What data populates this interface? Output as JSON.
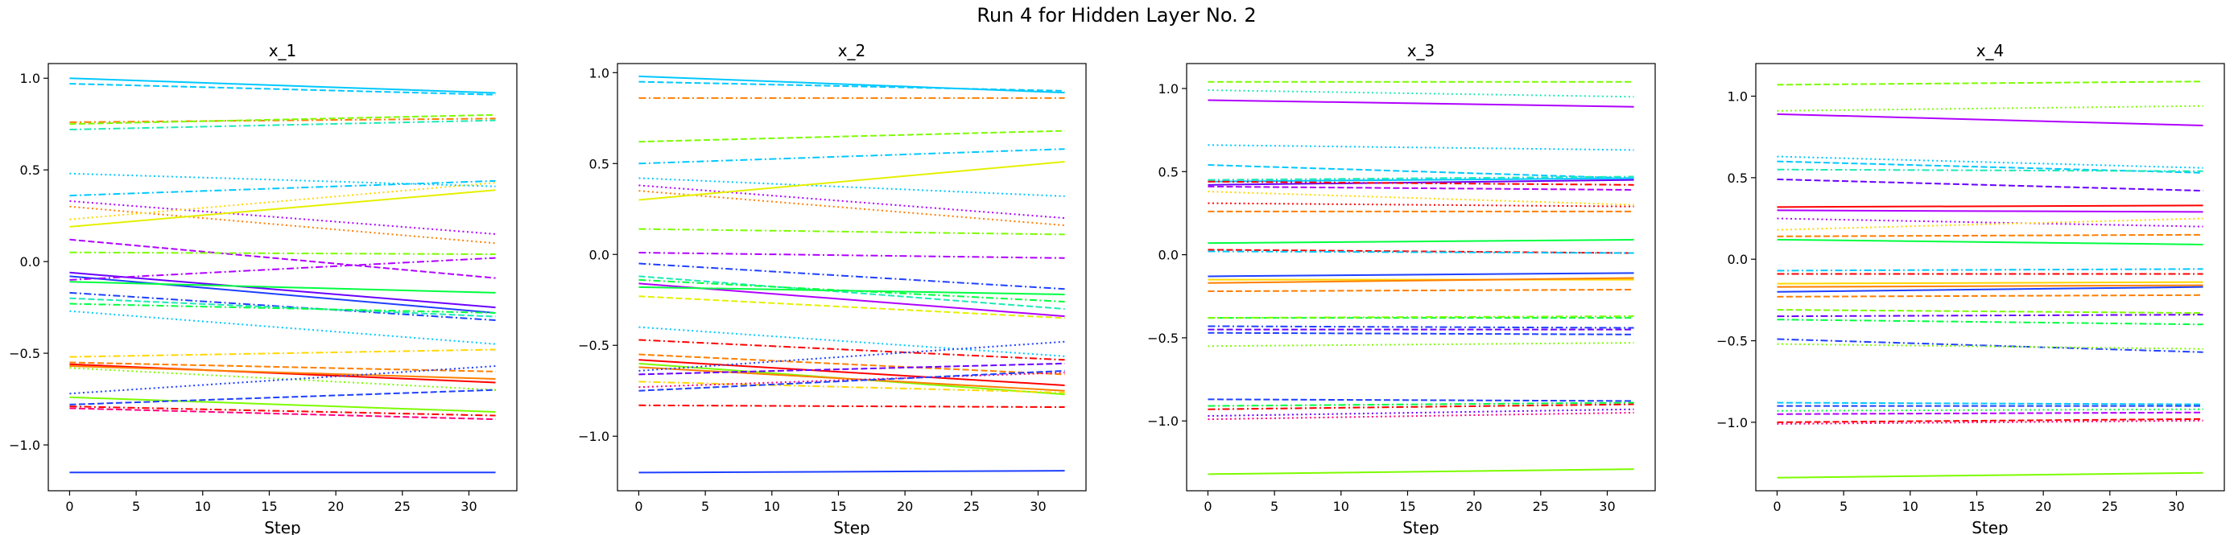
{
  "figure": {
    "title": "Run 4 for Hidden Layer No. 2"
  },
  "style": {
    "palette": [
      "#ff0000",
      "#ff7f00",
      "#ffd700",
      "#e5f000",
      "#7cfc00",
      "#00ff40",
      "#1de9b6",
      "#00c8ff",
      "#1e40ff",
      "#6a00ff",
      "#b000ff",
      "#ff0080"
    ]
  },
  "chart_data": [
    {
      "type": "line",
      "title": "x_1",
      "xlabel": "Step",
      "ylabel": "",
      "xlim": [
        -1.6,
        33.6
      ],
      "ylim": [
        -1.25,
        1.08
      ],
      "xticks": [
        0,
        5,
        10,
        15,
        20,
        25,
        30
      ],
      "yticks": [
        -1.0,
        -0.5,
        0.0,
        0.5,
        1.0
      ],
      "ytick_labels": [
        "−1.0",
        "−0.5",
        "0.0",
        "0.5",
        "1.0"
      ],
      "grid": false,
      "series": [
        {
          "start": 1.0,
          "end": 0.92,
          "color": "#00c8ff",
          "dash": "solid"
        },
        {
          "start": 0.97,
          "end": 0.91,
          "color": "#00c8ff",
          "dash": "dashed"
        },
        {
          "start": 0.76,
          "end": 0.78,
          "color": "#ff7f00",
          "dash": "dashdot"
        },
        {
          "start": 0.75,
          "end": 0.8,
          "color": "#7cfc00",
          "dash": "dashed"
        },
        {
          "start": 0.72,
          "end": 0.77,
          "color": "#1de9b6",
          "dash": "dashdot"
        },
        {
          "start": 0.48,
          "end": 0.41,
          "color": "#00c8ff",
          "dash": "dotted"
        },
        {
          "start": 0.36,
          "end": 0.44,
          "color": "#00c8ff",
          "dash": "dashdot"
        },
        {
          "start": 0.33,
          "end": 0.15,
          "color": "#b000ff",
          "dash": "dotted"
        },
        {
          "start": 0.3,
          "end": 0.1,
          "color": "#ff7f00",
          "dash": "dotted"
        },
        {
          "start": 0.19,
          "end": 0.39,
          "color": "#e5f000",
          "dash": "solid"
        },
        {
          "start": 0.23,
          "end": 0.43,
          "color": "#ffd700",
          "dash": "dotted"
        },
        {
          "start": 0.12,
          "end": -0.09,
          "color": "#b000ff",
          "dash": "dashed"
        },
        {
          "start": 0.05,
          "end": 0.04,
          "color": "#7cfc00",
          "dash": "dashdot"
        },
        {
          "start": -0.06,
          "end": -0.25,
          "color": "#6a00ff",
          "dash": "solid"
        },
        {
          "start": -0.08,
          "end": -0.28,
          "color": "#1e40ff",
          "dash": "solid"
        },
        {
          "start": -0.1,
          "end": 0.02,
          "color": "#b000ff",
          "dash": "dashdot"
        },
        {
          "start": -0.11,
          "end": -0.17,
          "color": "#00ff40",
          "dash": "solid"
        },
        {
          "start": -0.17,
          "end": -0.32,
          "color": "#1e40ff",
          "dash": "dashdot"
        },
        {
          "start": -0.2,
          "end": -0.3,
          "color": "#1de9b6",
          "dash": "dashed"
        },
        {
          "start": -0.23,
          "end": -0.28,
          "color": "#00ff40",
          "dash": "dashdot"
        },
        {
          "start": -0.27,
          "end": -0.45,
          "color": "#00c8ff",
          "dash": "dotted"
        },
        {
          "start": -0.52,
          "end": -0.48,
          "color": "#ffd700",
          "dash": "dashdot"
        },
        {
          "start": -0.55,
          "end": -0.6,
          "color": "#ff7f00",
          "dash": "dashed"
        },
        {
          "start": -0.56,
          "end": -0.66,
          "color": "#ff0000",
          "dash": "solid"
        },
        {
          "start": -0.57,
          "end": -0.64,
          "color": "#ff7f00",
          "dash": "solid"
        },
        {
          "start": -0.58,
          "end": -0.7,
          "color": "#7cfc00",
          "dash": "dotted"
        },
        {
          "start": -0.72,
          "end": -0.57,
          "color": "#1e40ff",
          "dash": "dotted"
        },
        {
          "start": -0.74,
          "end": -0.82,
          "color": "#7cfc00",
          "dash": "solid"
        },
        {
          "start": -0.78,
          "end": -0.7,
          "color": "#1e40ff",
          "dash": "dashed"
        },
        {
          "start": -0.79,
          "end": -0.84,
          "color": "#ff0000",
          "dash": "dashdot"
        },
        {
          "start": -0.8,
          "end": -0.86,
          "color": "#ff0080",
          "dash": "dashed"
        },
        {
          "start": -1.15,
          "end": -1.15,
          "color": "#1e40ff",
          "dash": "solid"
        }
      ]
    },
    {
      "type": "line",
      "title": "x_2",
      "xlabel": "Step",
      "ylabel": "",
      "xlim": [
        -1.6,
        33.6
      ],
      "ylim": [
        -1.3,
        1.05
      ],
      "xticks": [
        0,
        5,
        10,
        15,
        20,
        25,
        30
      ],
      "yticks": [
        -1.0,
        -0.5,
        0.0,
        0.5,
        1.0
      ],
      "ytick_labels": [
        "−1.0",
        "−0.5",
        "0.0",
        "0.5",
        "1.0"
      ],
      "grid": false,
      "series": [
        {
          "start": 0.98,
          "end": 0.89,
          "color": "#00c8ff",
          "dash": "solid"
        },
        {
          "start": 0.95,
          "end": 0.9,
          "color": "#00c8ff",
          "dash": "dashed"
        },
        {
          "start": 0.86,
          "end": 0.86,
          "color": "#ff7f00",
          "dash": "dashdot"
        },
        {
          "start": 0.62,
          "end": 0.68,
          "color": "#7cfc00",
          "dash": "dashed"
        },
        {
          "start": 0.5,
          "end": 0.58,
          "color": "#00c8ff",
          "dash": "dashdot"
        },
        {
          "start": 0.42,
          "end": 0.32,
          "color": "#00c8ff",
          "dash": "dotted"
        },
        {
          "start": 0.38,
          "end": 0.2,
          "color": "#b000ff",
          "dash": "dotted"
        },
        {
          "start": 0.35,
          "end": 0.16,
          "color": "#ff7f00",
          "dash": "dotted"
        },
        {
          "start": 0.3,
          "end": 0.51,
          "color": "#e5f000",
          "dash": "solid"
        },
        {
          "start": 0.14,
          "end": 0.11,
          "color": "#7cfc00",
          "dash": "dashdot"
        },
        {
          "start": 0.01,
          "end": -0.02,
          "color": "#b000ff",
          "dash": "dashdot"
        },
        {
          "start": -0.05,
          "end": -0.19,
          "color": "#1e40ff",
          "dash": "dashdot"
        },
        {
          "start": -0.12,
          "end": -0.3,
          "color": "#1de9b6",
          "dash": "dashed"
        },
        {
          "start": -0.14,
          "end": -0.26,
          "color": "#00ff40",
          "dash": "dashdot"
        },
        {
          "start": -0.16,
          "end": -0.34,
          "color": "#b000ff",
          "dash": "solid"
        },
        {
          "start": -0.18,
          "end": -0.22,
          "color": "#00ff40",
          "dash": "solid"
        },
        {
          "start": -0.23,
          "end": -0.35,
          "color": "#e5f000",
          "dash": "dashed"
        },
        {
          "start": -0.4,
          "end": -0.56,
          "color": "#00c8ff",
          "dash": "dotted"
        },
        {
          "start": -0.47,
          "end": -0.58,
          "color": "#ff0000",
          "dash": "dashdot"
        },
        {
          "start": -0.55,
          "end": -0.66,
          "color": "#ff7f00",
          "dash": "dashed"
        },
        {
          "start": -0.58,
          "end": -0.72,
          "color": "#ff0000",
          "dash": "solid"
        },
        {
          "start": -0.6,
          "end": -0.77,
          "color": "#7cfc00",
          "dash": "solid"
        },
        {
          "start": -0.62,
          "end": -0.75,
          "color": "#ff7f00",
          "dash": "solid"
        },
        {
          "start": -0.64,
          "end": -0.48,
          "color": "#1e40ff",
          "dash": "dotted"
        },
        {
          "start": -0.66,
          "end": -0.6,
          "color": "#6a00ff",
          "dash": "dashed"
        },
        {
          "start": -0.7,
          "end": -0.76,
          "color": "#ffd700",
          "dash": "dashdot"
        },
        {
          "start": -0.73,
          "end": -0.65,
          "color": "#ff0080",
          "dash": "dotted"
        },
        {
          "start": -0.75,
          "end": -0.64,
          "color": "#1e40ff",
          "dash": "dashed"
        },
        {
          "start": -0.83,
          "end": -0.84,
          "color": "#ff0000",
          "dash": "dashdot"
        },
        {
          "start": -1.2,
          "end": -1.19,
          "color": "#1e40ff",
          "dash": "solid"
        }
      ]
    },
    {
      "type": "line",
      "title": "x_3",
      "xlabel": "Step",
      "ylabel": "",
      "xlim": [
        -1.6,
        33.6
      ],
      "ylim": [
        -1.42,
        1.15
      ],
      "xticks": [
        0,
        5,
        10,
        15,
        20,
        25,
        30
      ],
      "yticks": [
        -1.0,
        -0.5,
        0.0,
        0.5,
        1.0
      ],
      "ytick_labels": [
        "−1.0",
        "−0.5",
        "0.0",
        "0.5",
        "1.0"
      ],
      "grid": false,
      "series": [
        {
          "start": 1.04,
          "end": 1.04,
          "color": "#7cfc00",
          "dash": "dashed"
        },
        {
          "start": 0.99,
          "end": 0.95,
          "color": "#1de9b6",
          "dash": "dotted"
        },
        {
          "start": 0.93,
          "end": 0.89,
          "color": "#b000ff",
          "dash": "solid"
        },
        {
          "start": 0.66,
          "end": 0.63,
          "color": "#00c8ff",
          "dash": "dotted"
        },
        {
          "start": 0.54,
          "end": 0.46,
          "color": "#00c8ff",
          "dash": "dashed"
        },
        {
          "start": 0.45,
          "end": 0.47,
          "color": "#1de9b6",
          "dash": "dashdot"
        },
        {
          "start": 0.44,
          "end": 0.46,
          "color": "#00c8ff",
          "dash": "solid"
        },
        {
          "start": 0.42,
          "end": 0.45,
          "color": "#6a00ff",
          "dash": "solid"
        },
        {
          "start": 0.44,
          "end": 0.42,
          "color": "#ff0000",
          "dash": "dashdot"
        },
        {
          "start": 0.41,
          "end": 0.39,
          "color": "#b000ff",
          "dash": "dashed"
        },
        {
          "start": 0.38,
          "end": 0.3,
          "color": "#ffd700",
          "dash": "dotted"
        },
        {
          "start": 0.31,
          "end": 0.29,
          "color": "#ff0000",
          "dash": "dotted"
        },
        {
          "start": 0.26,
          "end": 0.26,
          "color": "#ff7f00",
          "dash": "dashed"
        },
        {
          "start": 0.07,
          "end": 0.09,
          "color": "#00ff40",
          "dash": "solid"
        },
        {
          "start": 0.03,
          "end": 0.01,
          "color": "#ff0000",
          "dash": "dashed"
        },
        {
          "start": 0.02,
          "end": 0.01,
          "color": "#00c8ff",
          "dash": "dashdot"
        },
        {
          "start": -0.13,
          "end": -0.11,
          "color": "#1e40ff",
          "dash": "solid"
        },
        {
          "start": -0.15,
          "end": -0.15,
          "color": "#ffd700",
          "dash": "solid"
        },
        {
          "start": -0.17,
          "end": -0.14,
          "color": "#ff7f00",
          "dash": "solid"
        },
        {
          "start": -0.22,
          "end": -0.21,
          "color": "#ff7f00",
          "dash": "dashed"
        },
        {
          "start": -0.38,
          "end": -0.38,
          "color": "#00ff40",
          "dash": "dashed"
        },
        {
          "start": -0.38,
          "end": -0.37,
          "color": "#7cfc00",
          "dash": "dashdot"
        },
        {
          "start": -0.43,
          "end": -0.44,
          "color": "#1e40ff",
          "dash": "dashdot"
        },
        {
          "start": -0.45,
          "end": -0.45,
          "color": "#6a00ff",
          "dash": "dashed"
        },
        {
          "start": -0.47,
          "end": -0.48,
          "color": "#1e40ff",
          "dash": "dashed"
        },
        {
          "start": -0.55,
          "end": -0.53,
          "color": "#7cfc00",
          "dash": "dotted"
        },
        {
          "start": -0.87,
          "end": -0.88,
          "color": "#1e40ff",
          "dash": "dashed"
        },
        {
          "start": -0.91,
          "end": -0.89,
          "color": "#00ff40",
          "dash": "dashdot"
        },
        {
          "start": -0.93,
          "end": -0.9,
          "color": "#ff0000",
          "dash": "dashdot"
        },
        {
          "start": -0.97,
          "end": -0.93,
          "color": "#6a00ff",
          "dash": "dotted"
        },
        {
          "start": -0.99,
          "end": -0.95,
          "color": "#ff0080",
          "dash": "dotted"
        },
        {
          "start": -1.32,
          "end": -1.29,
          "color": "#7cfc00",
          "dash": "solid"
        }
      ]
    },
    {
      "type": "line",
      "title": "x_4",
      "xlabel": "Step",
      "ylabel": "",
      "xlim": [
        -1.6,
        33.6
      ],
      "ylim": [
        -1.42,
        1.2
      ],
      "xticks": [
        0,
        5,
        10,
        15,
        20,
        25,
        30
      ],
      "yticks": [
        -1.0,
        -0.5,
        0.0,
        0.5,
        1.0
      ],
      "ytick_labels": [
        "−1.0",
        "−0.5",
        "0.0",
        "0.5",
        "1.0"
      ],
      "grid": false,
      "series": [
        {
          "start": 1.07,
          "end": 1.09,
          "color": "#7cfc00",
          "dash": "dashed"
        },
        {
          "start": 0.91,
          "end": 0.94,
          "color": "#7cfc00",
          "dash": "dotted"
        },
        {
          "start": 0.89,
          "end": 0.82,
          "color": "#b000ff",
          "dash": "solid"
        },
        {
          "start": 0.63,
          "end": 0.56,
          "color": "#00c8ff",
          "dash": "dotted"
        },
        {
          "start": 0.6,
          "end": 0.53,
          "color": "#00c8ff",
          "dash": "dashed"
        },
        {
          "start": 0.55,
          "end": 0.54,
          "color": "#1de9b6",
          "dash": "dashdot"
        },
        {
          "start": 0.49,
          "end": 0.42,
          "color": "#6a00ff",
          "dash": "dashed"
        },
        {
          "start": 0.32,
          "end": 0.33,
          "color": "#ff0000",
          "dash": "solid"
        },
        {
          "start": 0.3,
          "end": 0.29,
          "color": "#b000ff",
          "dash": "solid"
        },
        {
          "start": 0.25,
          "end": 0.2,
          "color": "#b000ff",
          "dash": "dotted"
        },
        {
          "start": 0.18,
          "end": 0.25,
          "color": "#ffd700",
          "dash": "dotted"
        },
        {
          "start": 0.14,
          "end": 0.15,
          "color": "#ff7f00",
          "dash": "dashed"
        },
        {
          "start": 0.12,
          "end": 0.09,
          "color": "#00ff40",
          "dash": "solid"
        },
        {
          "start": -0.07,
          "end": -0.06,
          "color": "#00c8ff",
          "dash": "dashdot"
        },
        {
          "start": -0.09,
          "end": -0.09,
          "color": "#ff0000",
          "dash": "dashdot"
        },
        {
          "start": -0.15,
          "end": -0.14,
          "color": "#ffd700",
          "dash": "solid"
        },
        {
          "start": -0.17,
          "end": -0.16,
          "color": "#ff7f00",
          "dash": "solid"
        },
        {
          "start": -0.2,
          "end": -0.17,
          "color": "#1e40ff",
          "dash": "solid"
        },
        {
          "start": -0.23,
          "end": -0.22,
          "color": "#ff7f00",
          "dash": "dashed"
        },
        {
          "start": -0.31,
          "end": -0.33,
          "color": "#7cfc00",
          "dash": "dashed"
        },
        {
          "start": -0.35,
          "end": -0.34,
          "color": "#6a00ff",
          "dash": "dashdot"
        },
        {
          "start": -0.37,
          "end": -0.4,
          "color": "#00ff40",
          "dash": "dashdot"
        },
        {
          "start": -0.49,
          "end": -0.57,
          "color": "#1e40ff",
          "dash": "dashdot"
        },
        {
          "start": -0.52,
          "end": -0.55,
          "color": "#7cfc00",
          "dash": "dotted"
        },
        {
          "start": -0.88,
          "end": -0.89,
          "color": "#00c8ff",
          "dash": "dashed"
        },
        {
          "start": -0.9,
          "end": -0.9,
          "color": "#1e40ff",
          "dash": "dashed"
        },
        {
          "start": -0.93,
          "end": -0.92,
          "color": "#00ff40",
          "dash": "dotted"
        },
        {
          "start": -0.95,
          "end": -0.94,
          "color": "#b000ff",
          "dash": "dashed"
        },
        {
          "start": -1.0,
          "end": -0.98,
          "color": "#ff0000",
          "dash": "dashed"
        },
        {
          "start": -1.01,
          "end": -0.99,
          "color": "#ff0080",
          "dash": "dotted"
        },
        {
          "start": -1.34,
          "end": -1.31,
          "color": "#7cfc00",
          "dash": "solid"
        }
      ]
    }
  ]
}
